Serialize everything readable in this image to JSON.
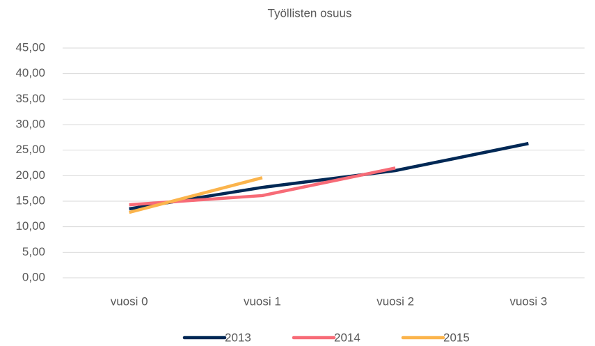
{
  "chart_data": {
    "type": "line",
    "title": "Työllisten osuus",
    "categories": [
      "vuosi 0",
      "vuosi 1",
      "vuosi 2",
      "vuosi 3"
    ],
    "series": [
      {
        "name": "2013",
        "color": "#002855",
        "values": [
          13.5,
          17.7,
          21.0,
          26.3
        ]
      },
      {
        "name": "2014",
        "color": "#f76b77",
        "values": [
          14.3,
          16.1,
          21.5,
          null
        ]
      },
      {
        "name": "2015",
        "color": "#fbb44c",
        "values": [
          12.8,
          19.6,
          null,
          null
        ]
      }
    ],
    "ylim": [
      0,
      45
    ],
    "yticks": [
      {
        "value": 0,
        "label": "0,00"
      },
      {
        "value": 5,
        "label": "5,00"
      },
      {
        "value": 10,
        "label": "10,00"
      },
      {
        "value": 15,
        "label": "15,00"
      },
      {
        "value": 20,
        "label": "20,00"
      },
      {
        "value": 25,
        "label": "25,00"
      },
      {
        "value": 30,
        "label": "30,00"
      },
      {
        "value": 35,
        "label": "35,00"
      },
      {
        "value": 40,
        "label": "40,00"
      },
      {
        "value": 45,
        "label": "45,00"
      }
    ],
    "grid": true,
    "legend": "bottom"
  }
}
